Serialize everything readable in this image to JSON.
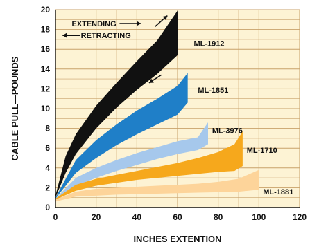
{
  "chart_data": {
    "type": "area",
    "xlabel": "INCHES EXTENTION",
    "ylabel": "CABLE PULL—POUNDS",
    "xlim": [
      0,
      120
    ],
    "ylim": [
      0,
      20
    ],
    "x_ticks": [
      0,
      20,
      40,
      60,
      80,
      100,
      120
    ],
    "y_ticks": [
      0,
      2,
      4,
      6,
      8,
      10,
      12,
      14,
      16,
      18,
      20
    ],
    "grid": true,
    "background": "#fdf3d4",
    "gridColor": "#c8a26a",
    "legend": {
      "extending": "EXTENDING",
      "retracting": "RETRACTING"
    },
    "series": [
      {
        "name": "ML-1912",
        "color": "#111111",
        "upper": [
          [
            0,
            1.2
          ],
          [
            5,
            5.2
          ],
          [
            10,
            7.4
          ],
          [
            20,
            10.3
          ],
          [
            30,
            12.6
          ],
          [
            40,
            14.8
          ],
          [
            50,
            16.9
          ],
          [
            60,
            19.9
          ]
        ],
        "lower": [
          [
            0,
            1.0
          ],
          [
            5,
            3.5
          ],
          [
            10,
            5.4
          ],
          [
            20,
            8.0
          ],
          [
            30,
            10.1
          ],
          [
            40,
            11.9
          ],
          [
            50,
            13.5
          ],
          [
            60,
            15.4
          ]
        ]
      },
      {
        "name": "ML-1851",
        "color": "#1f7fc8",
        "upper": [
          [
            0,
            1.0
          ],
          [
            10,
            4.8
          ],
          [
            20,
            6.8
          ],
          [
            30,
            8.4
          ],
          [
            40,
            9.8
          ],
          [
            50,
            11.0
          ],
          [
            60,
            12.3
          ],
          [
            65,
            13.6
          ]
        ],
        "lower": [
          [
            0,
            0.9
          ],
          [
            10,
            3.5
          ],
          [
            20,
            5.0
          ],
          [
            30,
            6.3
          ],
          [
            40,
            7.4
          ],
          [
            50,
            8.4
          ],
          [
            60,
            9.4
          ],
          [
            65,
            10.6
          ]
        ]
      },
      {
        "name": "ML-3976",
        "color": "#a6c8ec",
        "upper": [
          [
            0,
            0.9
          ],
          [
            10,
            3.0
          ],
          [
            20,
            4.0
          ],
          [
            30,
            4.8
          ],
          [
            40,
            5.5
          ],
          [
            50,
            6.1
          ],
          [
            60,
            6.7
          ],
          [
            70,
            7.1
          ],
          [
            75,
            8.6
          ]
        ],
        "lower": [
          [
            0,
            0.8
          ],
          [
            10,
            2.2
          ],
          [
            20,
            3.0
          ],
          [
            30,
            3.7
          ],
          [
            40,
            4.3
          ],
          [
            50,
            4.9
          ],
          [
            60,
            5.4
          ],
          [
            70,
            5.8
          ],
          [
            75,
            6.4
          ]
        ]
      },
      {
        "name": "ML-1710",
        "color": "#f6a81c",
        "upper": [
          [
            0,
            0.9
          ],
          [
            10,
            2.3
          ],
          [
            20,
            2.9
          ],
          [
            30,
            3.3
          ],
          [
            40,
            3.7
          ],
          [
            50,
            4.1
          ],
          [
            60,
            4.5
          ],
          [
            70,
            5.0
          ],
          [
            80,
            5.6
          ],
          [
            88,
            6.4
          ],
          [
            92,
            7.7
          ]
        ],
        "lower": [
          [
            0,
            0.8
          ],
          [
            10,
            1.7
          ],
          [
            20,
            2.2
          ],
          [
            30,
            2.5
          ],
          [
            40,
            2.8
          ],
          [
            50,
            3.0
          ],
          [
            60,
            3.2
          ],
          [
            70,
            3.4
          ],
          [
            80,
            3.6
          ],
          [
            88,
            3.7
          ],
          [
            92,
            4.2
          ]
        ]
      },
      {
        "name": "ML-1881",
        "color": "#fdd49a",
        "upper": [
          [
            0,
            0.8
          ],
          [
            10,
            1.6
          ],
          [
            20,
            1.9
          ],
          [
            30,
            2.0
          ],
          [
            40,
            2.1
          ],
          [
            50,
            2.2
          ],
          [
            60,
            2.3
          ],
          [
            70,
            2.4
          ],
          [
            80,
            2.6
          ],
          [
            90,
            2.9
          ],
          [
            100,
            3.8
          ]
        ],
        "lower": [
          [
            0,
            0.6
          ],
          [
            10,
            1.1
          ],
          [
            20,
            1.2
          ],
          [
            30,
            1.3
          ],
          [
            40,
            1.35
          ],
          [
            50,
            1.4
          ],
          [
            60,
            1.45
          ],
          [
            70,
            1.5
          ],
          [
            80,
            1.55
          ],
          [
            90,
            1.6
          ],
          [
            100,
            1.8
          ]
        ]
      }
    ]
  }
}
